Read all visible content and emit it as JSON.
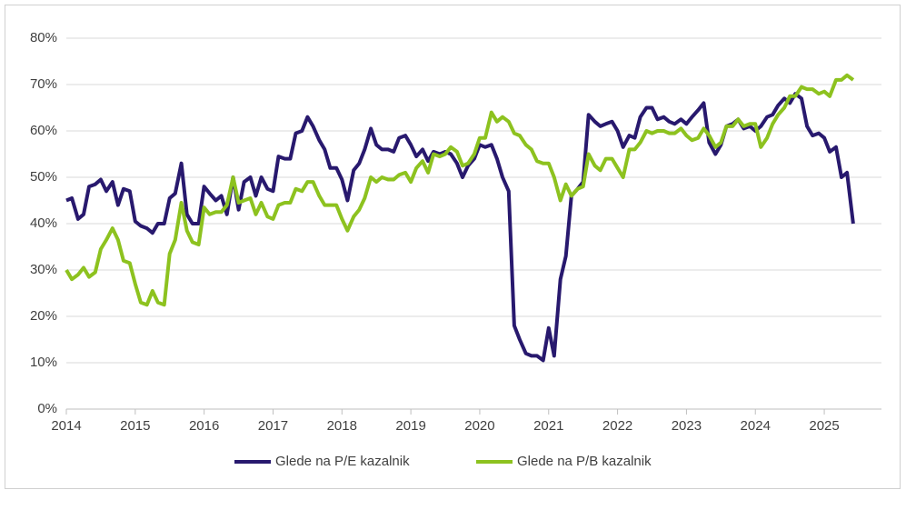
{
  "chart_data": {
    "type": "line",
    "x": [
      2014.0,
      2014.08,
      2014.17,
      2014.25,
      2014.33,
      2014.42,
      2014.5,
      2014.58,
      2014.67,
      2014.75,
      2014.83,
      2014.92,
      2015.0,
      2015.08,
      2015.17,
      2015.25,
      2015.33,
      2015.42,
      2015.5,
      2015.58,
      2015.67,
      2015.75,
      2015.83,
      2015.92,
      2016.0,
      2016.08,
      2016.17,
      2016.25,
      2016.33,
      2016.42,
      2016.5,
      2016.58,
      2016.67,
      2016.75,
      2016.83,
      2016.92,
      2017.0,
      2017.08,
      2017.17,
      2017.25,
      2017.33,
      2017.42,
      2017.5,
      2017.58,
      2017.67,
      2017.75,
      2017.83,
      2017.92,
      2018.0,
      2018.08,
      2018.17,
      2018.25,
      2018.33,
      2018.42,
      2018.5,
      2018.58,
      2018.67,
      2018.75,
      2018.83,
      2018.92,
      2019.0,
      2019.08,
      2019.17,
      2019.25,
      2019.33,
      2019.42,
      2019.5,
      2019.58,
      2019.67,
      2019.75,
      2019.83,
      2019.92,
      2020.0,
      2020.08,
      2020.17,
      2020.25,
      2020.33,
      2020.42,
      2020.5,
      2020.58,
      2020.67,
      2020.75,
      2020.83,
      2020.92,
      2021.0,
      2021.08,
      2021.17,
      2021.25,
      2021.33,
      2021.42,
      2021.5,
      2021.58,
      2021.67,
      2021.75,
      2021.83,
      2021.92,
      2022.0,
      2022.08,
      2022.17,
      2022.25,
      2022.33,
      2022.42,
      2022.5,
      2022.58,
      2022.67,
      2022.75,
      2022.83,
      2022.92,
      2023.0,
      2023.08,
      2023.17,
      2023.25,
      2023.33,
      2023.42,
      2023.5,
      2023.58,
      2023.67,
      2023.75,
      2023.83,
      2023.92,
      2024.0,
      2024.08,
      2024.17,
      2024.25,
      2024.33,
      2024.42,
      2024.5,
      2024.58,
      2024.67,
      2024.75,
      2024.83,
      2024.92,
      2025.0,
      2025.08,
      2025.17,
      2025.25,
      2025.33,
      2025.42
    ],
    "series": [
      {
        "name": "Glede na P/E kazalnik",
        "color": "#28196e",
        "values": [
          45,
          45.5,
          41,
          42,
          48,
          48.5,
          49.5,
          47,
          49,
          44,
          47.5,
          47,
          40.5,
          39.5,
          39,
          38,
          40,
          40,
          45.5,
          46.5,
          53,
          42,
          40,
          40,
          48,
          46.5,
          45,
          46,
          42,
          50,
          43,
          49,
          50,
          46,
          50,
          47.5,
          47,
          54.5,
          54,
          54,
          59.5,
          60,
          63,
          61,
          58,
          56,
          52,
          52,
          49.5,
          45,
          51.5,
          53,
          56,
          60.5,
          57,
          56,
          56,
          55.5,
          58.5,
          59,
          57,
          54.5,
          56,
          53.5,
          55.5,
          55,
          55.5,
          55,
          53,
          50,
          52.5,
          54,
          57,
          56.5,
          57,
          54,
          50,
          47,
          18,
          15,
          12,
          11.5,
          11.5,
          10.5,
          17.5,
          11.5,
          28,
          33,
          46,
          47.5,
          49,
          63.5,
          62,
          61,
          61.5,
          62,
          60,
          56.5,
          59,
          58.5,
          63,
          65,
          65,
          62.5,
          63,
          62,
          61.5,
          62.5,
          61.5,
          63,
          64.5,
          66,
          57.5,
          55,
          57,
          61,
          61.5,
          62.5,
          60.5,
          61,
          60,
          61,
          63,
          63.5,
          65.5,
          67,
          66,
          68,
          67,
          61,
          59,
          59.5,
          58.5,
          55.5,
          56.5,
          50,
          51,
          40
        ]
      },
      {
        "name": "Glede na P/B kazalnik",
        "color": "#8dc21f",
        "values": [
          30,
          28,
          29,
          30.5,
          28.5,
          29.5,
          34.5,
          36.5,
          39,
          36.5,
          32,
          31.5,
          27,
          23,
          22.5,
          25.5,
          23,
          22.5,
          33.5,
          36.5,
          44.5,
          38.5,
          36,
          35.5,
          43.5,
          42,
          42.5,
          42.5,
          44,
          50,
          44.5,
          45,
          45.5,
          42,
          44.5,
          41.5,
          41,
          44,
          44.5,
          44.5,
          47.5,
          47,
          49,
          49,
          46,
          44,
          44,
          44,
          41,
          38.5,
          41.5,
          43,
          45.5,
          50,
          49,
          50,
          49.5,
          49.5,
          50.5,
          51,
          49,
          52,
          53.5,
          51,
          55,
          54.5,
          55,
          56.5,
          55.5,
          52.5,
          53,
          55,
          58.5,
          58.5,
          64,
          62,
          63,
          62,
          59.5,
          59,
          57,
          56,
          53.5,
          53,
          53,
          50,
          45,
          48.5,
          46,
          47.5,
          48,
          55,
          52.5,
          51.5,
          54,
          54,
          52,
          50,
          56,
          56,
          57.5,
          60,
          59.5,
          60,
          60,
          59.5,
          59.5,
          60.5,
          59,
          58,
          58.5,
          60.5,
          59,
          56.5,
          57.5,
          61,
          61,
          62.5,
          61,
          61.5,
          61.5,
          56.5,
          58.5,
          61.5,
          63.5,
          65,
          67.5,
          67.5,
          69.5,
          69,
          69,
          68,
          68.5,
          67.5,
          71,
          71,
          72,
          71
        ]
      }
    ],
    "xlim": [
      2014,
      2025.83
    ],
    "xticks": [
      2014,
      2015,
      2016,
      2017,
      2018,
      2019,
      2020,
      2021,
      2022,
      2023,
      2024,
      2025
    ],
    "ylim": [
      0,
      80
    ],
    "yticks": [
      {
        "value": 0,
        "label": "0%"
      },
      {
        "value": 10,
        "label": "10%"
      },
      {
        "value": 20,
        "label": "20%"
      },
      {
        "value": 30,
        "label": "30%"
      },
      {
        "value": 40,
        "label": "40%"
      },
      {
        "value": 50,
        "label": "50%"
      },
      {
        "value": 60,
        "label": "60%"
      },
      {
        "value": 70,
        "label": "70%"
      },
      {
        "value": 80,
        "label": "80%"
      }
    ],
    "grid": true,
    "legend": "bottom"
  }
}
